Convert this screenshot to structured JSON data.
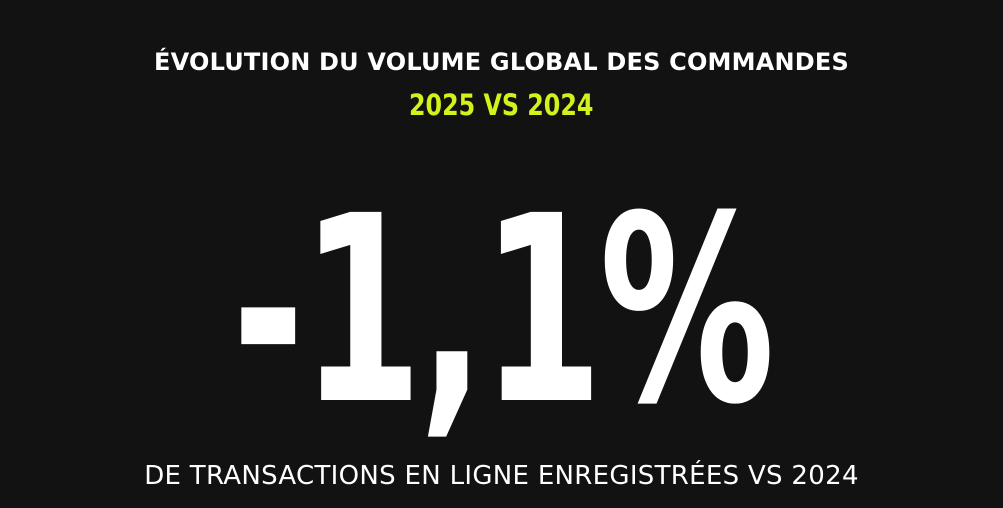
{
  "colors": {
    "background": "#121212",
    "primary_text": "#ffffff",
    "accent": "#d4f21a"
  },
  "infographic": {
    "title": "ÉVOLUTION DU VOLUME GLOBAL DES COMMANDES",
    "subtitle": "2025 VS 2024",
    "value": "-1,1%",
    "caption": "DE TRANSACTIONS EN LIGNE ENREGISTRÉES VS 2024"
  }
}
